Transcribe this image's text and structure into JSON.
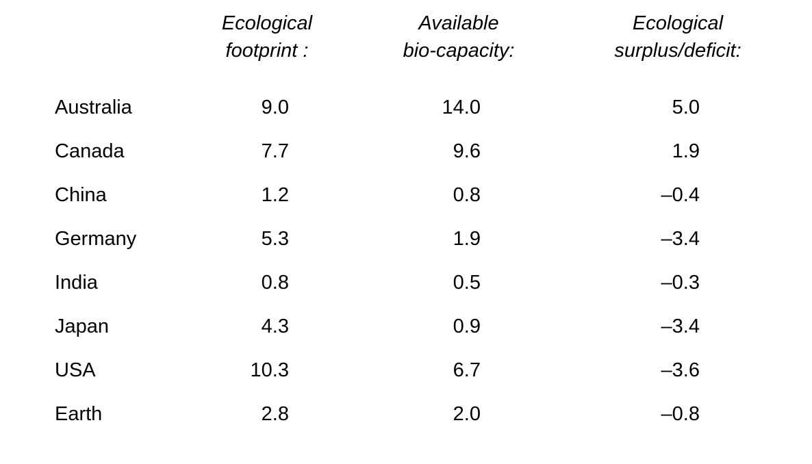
{
  "table": {
    "columns": [
      {
        "line1": "Ecological",
        "line2": "footprint :"
      },
      {
        "line1": "Available",
        "line2": "bio-capacity:"
      },
      {
        "line1": "Ecological",
        "line2": "surplus/deficit:"
      }
    ],
    "rows": [
      {
        "country": "Australia",
        "footprint": "9.0",
        "biocapacity": "14.0",
        "surplus": "5.0"
      },
      {
        "country": "Canada",
        "footprint": "7.7",
        "biocapacity": "9.6",
        "surplus": "1.9"
      },
      {
        "country": "China",
        "footprint": "1.2",
        "biocapacity": "0.8",
        "surplus": "–0.4"
      },
      {
        "country": "Germany",
        "footprint": "5.3",
        "biocapacity": "1.9",
        "surplus": "–3.4"
      },
      {
        "country": "India",
        "footprint": "0.8",
        "biocapacity": "0.5",
        "surplus": "–0.3"
      },
      {
        "country": "Japan",
        "footprint": "4.3",
        "biocapacity": "0.9",
        "surplus": "–3.4"
      },
      {
        "country": "USA",
        "footprint": "10.3",
        "biocapacity": "6.7",
        "surplus": "–3.6"
      },
      {
        "country": "Earth",
        "footprint": "2.8",
        "biocapacity": "2.0",
        "surplus": "–0.8"
      }
    ],
    "text_color": "#000000",
    "background_color": "#ffffff"
  },
  "chart_data": {
    "type": "table",
    "title": "",
    "columns": [
      "",
      "Ecological footprint :",
      "Available bio-capacity:",
      "Ecological surplus/deficit:"
    ],
    "rows": [
      [
        "Australia",
        9.0,
        14.0,
        5.0
      ],
      [
        "Canada",
        7.7,
        9.6,
        1.9
      ],
      [
        "China",
        1.2,
        0.8,
        -0.4
      ],
      [
        "Germany",
        5.3,
        1.9,
        -3.4
      ],
      [
        "India",
        0.8,
        0.5,
        -0.3
      ],
      [
        "Japan",
        4.3,
        0.9,
        -3.4
      ],
      [
        "USA",
        10.3,
        6.7,
        -3.6
      ],
      [
        "Earth",
        2.8,
        2.0,
        -0.8
      ]
    ],
    "layout_hints": {
      "header_style": "italic, two lines, centered",
      "country_column_align": "left",
      "numeric_align": "decimal-right",
      "grid": "off",
      "negative_sign": "en-dash"
    }
  }
}
